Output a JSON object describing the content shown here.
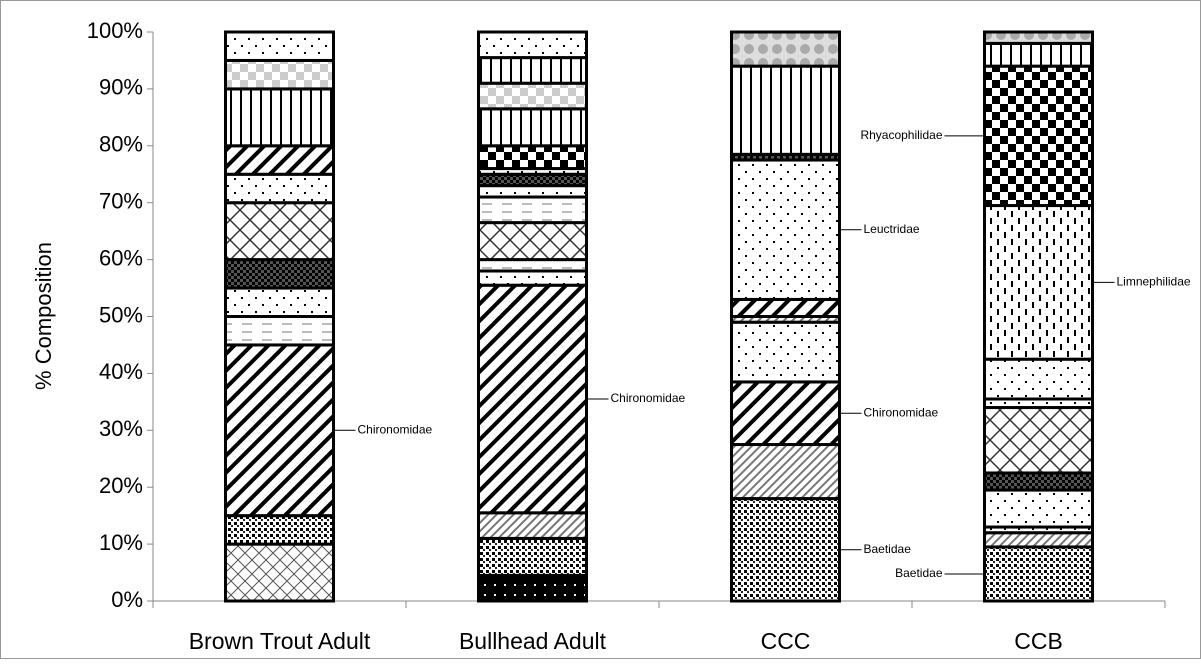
{
  "chart_data": {
    "type": "stacked_bar",
    "ylabel": "% Composition",
    "categories": [
      "Brown Trout Adult",
      "Bullhead Adult",
      "CCC",
      "CCB"
    ],
    "segments": [
      [
        {
          "value": 10
        },
        {
          "value": 5
        },
        {
          "value": 30,
          "label": "Chironomidae"
        },
        {
          "value": 5
        },
        {
          "value": 5
        },
        {
          "value": 5
        },
        {
          "value": 10
        },
        {
          "value": 5
        },
        {
          "value": 5
        },
        {
          "value": 10
        },
        {
          "value": 5
        },
        {
          "value": 5
        }
      ],
      [
        {
          "value": 4.5
        },
        {
          "value": 6.5
        },
        {
          "value": 4.5
        },
        {
          "value": 40,
          "label": "Chironomidae"
        },
        {
          "value": 2.5
        },
        {
          "value": 2
        },
        {
          "value": 6.5
        },
        {
          "value": 4.5
        },
        {
          "value": 2
        },
        {
          "value": 2
        },
        {
          "value": 1
        },
        {
          "value": 4
        },
        {
          "value": 6.5
        },
        {
          "value": 4.5
        },
        {
          "value": 4.5
        },
        {
          "value": 4.5
        }
      ],
      [
        {
          "value": 18,
          "label": "Baetidae"
        },
        {
          "value": 9.5
        },
        {
          "value": 11,
          "label": "Chironomidae"
        },
        {
          "value": 10.5
        },
        {
          "value": 1
        },
        {
          "value": 3
        },
        {
          "value": 24.5,
          "label": "Leuctridae"
        },
        {
          "value": 1
        },
        {
          "value": 15.5
        },
        {
          "value": 6
        }
      ],
      [
        {
          "value": 9.5,
          "label": "Baetidae"
        },
        {
          "value": 2.5
        },
        {
          "value": 1
        },
        {
          "value": 6.5
        },
        {
          "value": 3
        },
        {
          "value": 11.5
        },
        {
          "value": 1.5
        },
        {
          "value": 7
        },
        {
          "value": 27,
          "label": "Limnephilidae"
        },
        {
          "value": 24.5,
          "label": "Rhyacophilidae"
        },
        {
          "value": 4
        },
        {
          "value": 2
        }
      ]
    ],
    "ylim": [
      0,
      100
    ],
    "yticks": [
      {
        "value": 0,
        "label": "0%"
      },
      {
        "value": 10,
        "label": "10%"
      },
      {
        "value": 20,
        "label": "20%"
      },
      {
        "value": 30,
        "label": "30%"
      },
      {
        "value": 40,
        "label": "40%"
      },
      {
        "value": 50,
        "label": "50%"
      },
      {
        "value": 60,
        "label": "60%"
      },
      {
        "value": 70,
        "label": "70%"
      },
      {
        "value": 80,
        "label": "80%"
      },
      {
        "value": 90,
        "label": "90%"
      },
      {
        "value": 100,
        "label": "100%"
      }
    ]
  }
}
